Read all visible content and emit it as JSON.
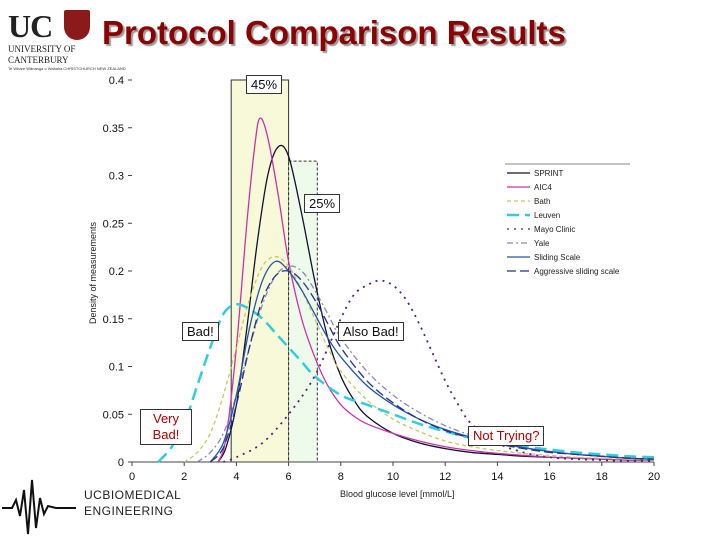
{
  "slide_title": "Protocol Comparison Results",
  "logo": {
    "text": "UC",
    "line1": "UNIVERSITY OF",
    "line2": "CANTERBURY",
    "line3": "Te Whare Wānanga o Waitaha  CHRISTCHURCH NEW ZEALAND"
  },
  "engineering_logo": {
    "line1": "UCBIOMEDICAL",
    "line2": "ENGINEERING"
  },
  "colors": {
    "title": "#8b0000",
    "annotation_red": "#b00000",
    "band_45": "#f7f9d8",
    "band_25": "#eefaea"
  },
  "chart_data": {
    "type": "line",
    "xlabel": "Blood glucose level [mmol/L]",
    "ylabel": "Density of measurements",
    "xlim": [
      0,
      20
    ],
    "ylim": [
      0,
      0.4
    ],
    "x_ticks": [
      0,
      2,
      4,
      6,
      8,
      10,
      12,
      14,
      16,
      18,
      20
    ],
    "y_ticks": [
      0,
      0.05,
      0.1,
      0.15,
      0.2,
      0.25,
      0.3,
      0.35,
      0.4
    ],
    "grid": false,
    "legend_position": "right",
    "series": [
      {
        "name": "SPRINT",
        "color": "#111133",
        "dash": "",
        "x": [
          3.3,
          3.6,
          4.0,
          4.4,
          4.8,
          5.2,
          5.6,
          6.0,
          6.5,
          7.0,
          7.5,
          8.0,
          8.5,
          9,
          10,
          11,
          12,
          13,
          14,
          15,
          16,
          17,
          18,
          19,
          20
        ],
        "y": [
          0.0,
          0.015,
          0.06,
          0.14,
          0.23,
          0.3,
          0.33,
          0.32,
          0.26,
          0.19,
          0.13,
          0.09,
          0.065,
          0.048,
          0.03,
          0.02,
          0.014,
          0.01,
          0.008,
          0.006,
          0.005,
          0.004,
          0.003,
          0.002,
          0.002
        ]
      },
      {
        "name": "AIC4",
        "color": "#cc33aa",
        "dash": "",
        "x": [
          3.3,
          3.6,
          4.0,
          4.4,
          4.7,
          4.9,
          5.2,
          5.6,
          6.0,
          6.5,
          7.0,
          7.5,
          8.0,
          8.5,
          9,
          10,
          11,
          12,
          13,
          14,
          15,
          16,
          17,
          18,
          19,
          20
        ],
        "y": [
          0.0,
          0.025,
          0.12,
          0.25,
          0.33,
          0.36,
          0.34,
          0.28,
          0.21,
          0.15,
          0.11,
          0.08,
          0.06,
          0.048,
          0.04,
          0.03,
          0.022,
          0.016,
          0.012,
          0.009,
          0.007,
          0.005,
          0.004,
          0.003,
          0.002,
          0.002
        ]
      },
      {
        "name": "Bath",
        "color": "#c8c864",
        "dash": "4 3",
        "x": [
          2.0,
          2.5,
          3.0,
          3.5,
          4.0,
          4.5,
          5.0,
          5.5,
          6.0,
          6.5,
          7.0,
          7.5,
          8.0,
          9,
          10,
          11,
          12,
          13,
          14,
          15,
          16,
          17,
          18,
          19,
          20
        ],
        "y": [
          0.0,
          0.01,
          0.03,
          0.07,
          0.12,
          0.17,
          0.205,
          0.215,
          0.205,
          0.18,
          0.15,
          0.12,
          0.095,
          0.065,
          0.045,
          0.032,
          0.022,
          0.016,
          0.012,
          0.009,
          0.007,
          0.005,
          0.004,
          0.003,
          0.002
        ]
      },
      {
        "name": "Leuven",
        "color": "#33ccdd",
        "dash": "12 6",
        "x": [
          1.0,
          1.5,
          2.0,
          2.5,
          3.0,
          3.5,
          4.0,
          4.5,
          5.0,
          5.5,
          6.0,
          6.5,
          7.0,
          8,
          9,
          10,
          11,
          12,
          13,
          14,
          15,
          16,
          17,
          18,
          19,
          20
        ],
        "y": [
          0.0,
          0.015,
          0.04,
          0.08,
          0.12,
          0.155,
          0.165,
          0.16,
          0.15,
          0.135,
          0.12,
          0.105,
          0.09,
          0.07,
          0.06,
          0.05,
          0.04,
          0.032,
          0.025,
          0.02,
          0.016,
          0.013,
          0.01,
          0.008,
          0.006,
          0.005
        ]
      },
      {
        "name": "Mayo Clinic",
        "color": "#552277",
        "dash": "2 5",
        "x": [
          3.5,
          4,
          5,
          6,
          7,
          8,
          8.5,
          9,
          9.5,
          10,
          10.5,
          11,
          11.5,
          12,
          12.5,
          13,
          14,
          15,
          16,
          17,
          18,
          19,
          20
        ],
        "y": [
          0.0,
          0.005,
          0.02,
          0.05,
          0.09,
          0.15,
          0.175,
          0.185,
          0.19,
          0.185,
          0.17,
          0.145,
          0.115,
          0.085,
          0.06,
          0.04,
          0.02,
          0.01,
          0.005,
          0.003,
          0.002,
          0.001,
          0.001
        ]
      },
      {
        "name": "Yale",
        "color": "#8888bb",
        "dash": "6 3 2 3",
        "x": [
          2.5,
          3.0,
          3.5,
          4.0,
          4.5,
          5.0,
          5.5,
          6.0,
          6.5,
          7.0,
          7.5,
          8,
          9,
          10,
          11,
          12,
          13,
          14,
          15,
          16,
          17,
          18,
          19,
          20
        ],
        "y": [
          0.0,
          0.01,
          0.03,
          0.07,
          0.12,
          0.165,
          0.195,
          0.205,
          0.2,
          0.18,
          0.155,
          0.13,
          0.095,
          0.07,
          0.052,
          0.038,
          0.028,
          0.02,
          0.015,
          0.011,
          0.008,
          0.006,
          0.004,
          0.003
        ]
      },
      {
        "name": "Sliding Scale",
        "color": "#2255aa",
        "dash": "",
        "x": [
          3.0,
          3.5,
          4.0,
          4.5,
          5.0,
          5.5,
          6.0,
          6.5,
          7.0,
          7.5,
          8,
          9,
          10,
          11,
          12,
          13,
          14,
          15,
          16,
          17,
          18,
          19,
          20
        ],
        "y": [
          0.0,
          0.02,
          0.07,
          0.14,
          0.19,
          0.21,
          0.2,
          0.18,
          0.155,
          0.13,
          0.11,
          0.08,
          0.06,
          0.045,
          0.034,
          0.026,
          0.02,
          0.015,
          0.011,
          0.008,
          0.006,
          0.004,
          0.003
        ]
      },
      {
        "name": "Aggressive sliding scale",
        "color": "#223388",
        "dash": "9 4",
        "x": [
          3.0,
          3.5,
          4.0,
          4.5,
          5.0,
          5.5,
          6.0,
          6.5,
          7.0,
          7.5,
          8,
          9,
          10,
          11,
          12,
          13,
          14,
          15,
          16,
          17,
          18,
          19,
          20
        ],
        "y": [
          0.0,
          0.015,
          0.06,
          0.12,
          0.17,
          0.195,
          0.2,
          0.19,
          0.17,
          0.145,
          0.12,
          0.085,
          0.062,
          0.045,
          0.033,
          0.025,
          0.019,
          0.014,
          0.01,
          0.008,
          0.006,
          0.004,
          0.003
        ]
      }
    ],
    "bands": [
      {
        "label": "45%",
        "x_from": 3.8,
        "x_to": 6.0,
        "y_top": 0.4
      },
      {
        "label": "25%",
        "x_from": 6.0,
        "x_to": 7.1,
        "y_top": 0.315
      }
    ],
    "annotations": [
      {
        "id": "bad",
        "text": "Bad!"
      },
      {
        "id": "also_bad",
        "text": "Also Bad!"
      },
      {
        "id": "very_bad",
        "text": "Very Bad!"
      },
      {
        "id": "not_trying",
        "text": "Not Trying?"
      }
    ]
  }
}
